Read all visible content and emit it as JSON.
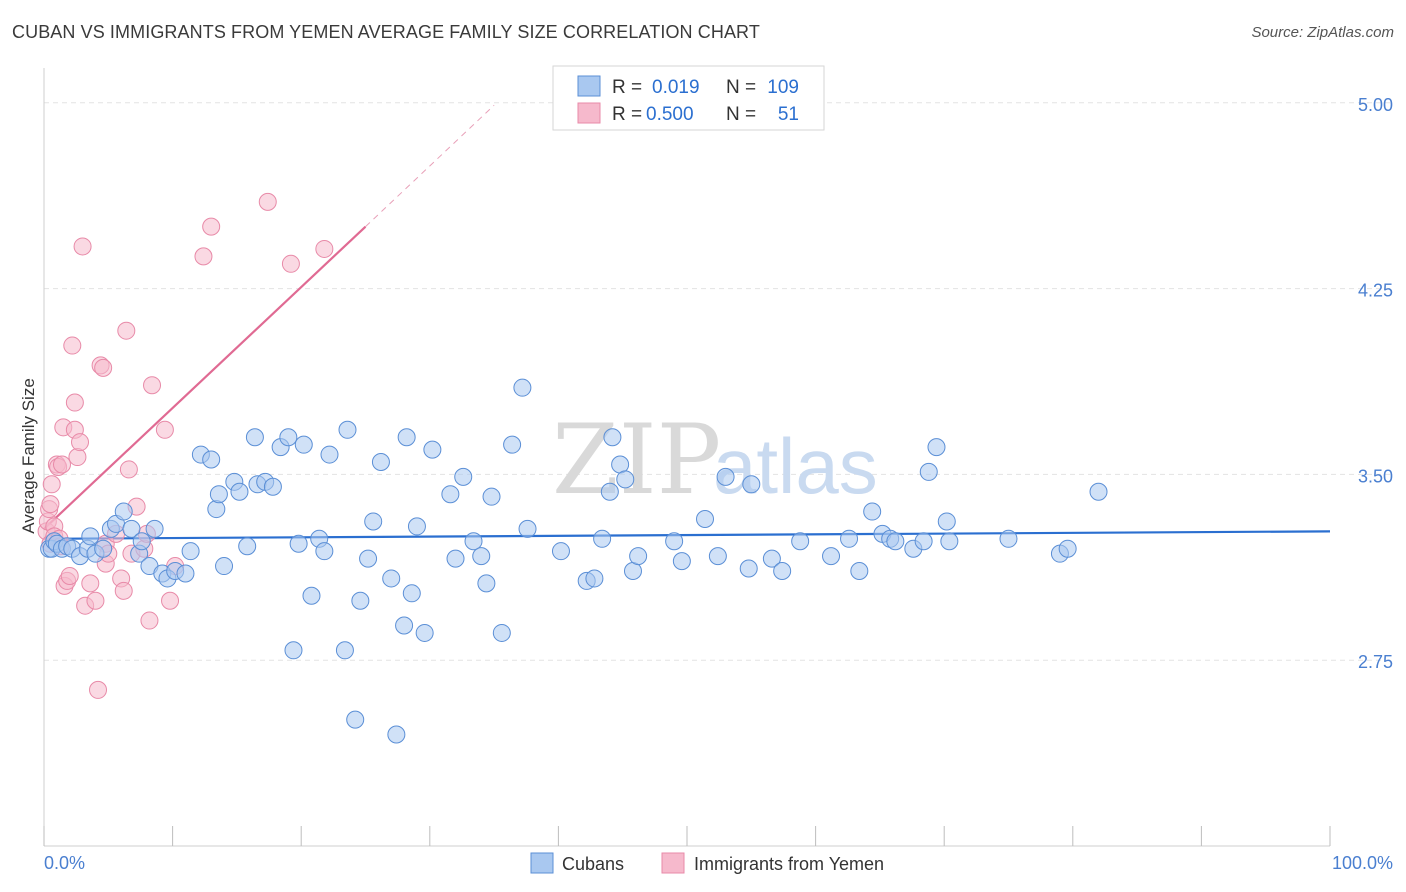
{
  "title": "CUBAN VS IMMIGRANTS FROM YEMEN AVERAGE FAMILY SIZE CORRELATION CHART",
  "source": "Source: ZipAtlas.com",
  "watermark": {
    "zip": "ZIP",
    "atlas": "atlas"
  },
  "colors": {
    "cubans_fill": "#a9c8f0",
    "cubans_stroke": "#5b8fd6",
    "cubans_line": "#2b6fd0",
    "yemen_fill": "#f6b9cc",
    "yemen_stroke": "#e88aa8",
    "yemen_line": "#e06a93",
    "axis_label": "#4a7fd0",
    "grid": "#e3e3e3"
  },
  "chart_data": {
    "type": "scatter",
    "title": "CUBAN VS IMMIGRANTS FROM YEMEN AVERAGE FAMILY SIZE CORRELATION CHART",
    "xlabel": "",
    "ylabel": "Average Family Size",
    "xlim": [
      0,
      100
    ],
    "ylim": [
      2.0,
      5.1
    ],
    "x_tick_labels": [
      "0.0%",
      "100.0%"
    ],
    "y_ticks": [
      5.0,
      4.25,
      3.5,
      2.75
    ],
    "y_tick_labels": [
      "5.00",
      "4.25",
      "3.50",
      "2.75"
    ],
    "grid": true,
    "legend_position": "top-center",
    "legend": [
      {
        "r_label": "R =",
        "r_value": "0.019",
        "n_label": "N =",
        "n_value": "109"
      },
      {
        "r_label": "R =",
        "r_value": "0.500",
        "n_label": "N =",
        "n_value": "51"
      }
    ],
    "series": [
      {
        "name": "Cubans",
        "trend": {
          "x": [
            0,
            100
          ],
          "y": [
            3.24,
            3.27
          ]
        },
        "points": [
          [
            0.4,
            3.2
          ],
          [
            0.6,
            3.2
          ],
          [
            0.8,
            3.23
          ],
          [
            1.0,
            3.22
          ],
          [
            1.4,
            3.2
          ],
          [
            1.8,
            3.21
          ],
          [
            2.2,
            3.2
          ],
          [
            2.8,
            3.17
          ],
          [
            3.4,
            3.2
          ],
          [
            3.6,
            3.25
          ],
          [
            4.0,
            3.18
          ],
          [
            4.6,
            3.2
          ],
          [
            5.2,
            3.28
          ],
          [
            5.6,
            3.3
          ],
          [
            6.2,
            3.35
          ],
          [
            6.8,
            3.28
          ],
          [
            7.4,
            3.18
          ],
          [
            7.6,
            3.23
          ],
          [
            8.2,
            3.13
          ],
          [
            8.6,
            3.28
          ],
          [
            9.2,
            3.1
          ],
          [
            9.6,
            3.08
          ],
          [
            10.2,
            3.11
          ],
          [
            11.0,
            3.1
          ],
          [
            11.4,
            3.19
          ],
          [
            12.2,
            3.58
          ],
          [
            13.0,
            3.56
          ],
          [
            13.4,
            3.36
          ],
          [
            13.6,
            3.42
          ],
          [
            14.0,
            3.13
          ],
          [
            14.8,
            3.47
          ],
          [
            15.2,
            3.43
          ],
          [
            15.8,
            3.21
          ],
          [
            16.4,
            3.65
          ],
          [
            16.6,
            3.46
          ],
          [
            17.2,
            3.47
          ],
          [
            17.8,
            3.45
          ],
          [
            18.4,
            3.61
          ],
          [
            19.0,
            3.65
          ],
          [
            19.4,
            2.79
          ],
          [
            19.8,
            3.22
          ],
          [
            20.2,
            3.62
          ],
          [
            20.8,
            3.01
          ],
          [
            21.4,
            3.24
          ],
          [
            21.8,
            3.19
          ],
          [
            22.2,
            3.58
          ],
          [
            23.4,
            2.79
          ],
          [
            23.6,
            3.68
          ],
          [
            24.2,
            2.51
          ],
          [
            24.6,
            2.99
          ],
          [
            25.2,
            3.16
          ],
          [
            25.6,
            3.31
          ],
          [
            26.2,
            3.55
          ],
          [
            27.0,
            3.08
          ],
          [
            27.4,
            2.45
          ],
          [
            28.0,
            2.89
          ],
          [
            28.2,
            3.65
          ],
          [
            28.6,
            3.02
          ],
          [
            29.0,
            3.29
          ],
          [
            29.6,
            2.86
          ],
          [
            30.2,
            3.6
          ],
          [
            31.6,
            3.42
          ],
          [
            32.0,
            3.16
          ],
          [
            32.6,
            3.49
          ],
          [
            33.4,
            3.23
          ],
          [
            34.0,
            3.17
          ],
          [
            34.4,
            3.06
          ],
          [
            34.8,
            3.41
          ],
          [
            35.6,
            2.86
          ],
          [
            36.4,
            3.62
          ],
          [
            37.2,
            3.85
          ],
          [
            37.6,
            3.28
          ],
          [
            40.2,
            3.19
          ],
          [
            42.2,
            3.07
          ],
          [
            42.8,
            3.08
          ],
          [
            43.4,
            3.24
          ],
          [
            44.0,
            3.43
          ],
          [
            44.2,
            3.65
          ],
          [
            44.8,
            3.54
          ],
          [
            45.2,
            3.48
          ],
          [
            45.8,
            3.11
          ],
          [
            46.2,
            3.17
          ],
          [
            49.0,
            3.23
          ],
          [
            49.6,
            3.15
          ],
          [
            51.4,
            3.32
          ],
          [
            52.4,
            3.17
          ],
          [
            53.0,
            3.49
          ],
          [
            54.8,
            3.12
          ],
          [
            55.0,
            3.46
          ],
          [
            56.6,
            3.16
          ],
          [
            57.4,
            3.11
          ],
          [
            58.8,
            3.23
          ],
          [
            61.2,
            3.17
          ],
          [
            62.6,
            3.24
          ],
          [
            63.4,
            3.11
          ],
          [
            64.4,
            3.35
          ],
          [
            65.2,
            3.26
          ],
          [
            65.8,
            3.24
          ],
          [
            66.2,
            3.23
          ],
          [
            67.6,
            3.2
          ],
          [
            68.4,
            3.23
          ],
          [
            68.8,
            3.51
          ],
          [
            69.4,
            3.61
          ],
          [
            70.2,
            3.31
          ],
          [
            70.4,
            3.23
          ],
          [
            75.0,
            3.24
          ],
          [
            79.0,
            3.18
          ],
          [
            79.6,
            3.2
          ],
          [
            82.0,
            3.43
          ]
        ]
      },
      {
        "name": "Immigrants from Yemen",
        "trend": {
          "x": [
            0,
            25
          ],
          "y": [
            3.28,
            4.5
          ]
        },
        "trend_extension": {
          "x": [
            25,
            35
          ],
          "y": [
            4.5,
            4.99
          ]
        },
        "points": [
          [
            0.2,
            3.27
          ],
          [
            0.3,
            3.31
          ],
          [
            0.4,
            3.36
          ],
          [
            0.5,
            3.22
          ],
          [
            0.5,
            3.38
          ],
          [
            0.6,
            3.46
          ],
          [
            0.8,
            3.29
          ],
          [
            0.8,
            3.25
          ],
          [
            1.0,
            3.54
          ],
          [
            1.1,
            3.53
          ],
          [
            1.2,
            3.24
          ],
          [
            1.3,
            3.21
          ],
          [
            1.4,
            3.54
          ],
          [
            1.5,
            3.69
          ],
          [
            1.6,
            3.05
          ],
          [
            1.8,
            3.07
          ],
          [
            2.0,
            3.09
          ],
          [
            2.2,
            4.02
          ],
          [
            2.4,
            3.79
          ],
          [
            2.4,
            3.68
          ],
          [
            2.6,
            3.57
          ],
          [
            2.8,
            3.63
          ],
          [
            3.0,
            4.42
          ],
          [
            3.2,
            2.97
          ],
          [
            3.6,
            3.06
          ],
          [
            4.0,
            2.99
          ],
          [
            4.2,
            2.63
          ],
          [
            4.4,
            3.94
          ],
          [
            4.6,
            3.93
          ],
          [
            4.8,
            3.14
          ],
          [
            4.8,
            3.22
          ],
          [
            5.0,
            3.18
          ],
          [
            5.6,
            3.26
          ],
          [
            6.0,
            3.08
          ],
          [
            6.2,
            3.03
          ],
          [
            6.4,
            4.08
          ],
          [
            6.6,
            3.52
          ],
          [
            6.8,
            3.18
          ],
          [
            7.2,
            3.37
          ],
          [
            7.8,
            3.2
          ],
          [
            8.0,
            3.26
          ],
          [
            8.2,
            2.91
          ],
          [
            8.4,
            3.86
          ],
          [
            9.4,
            3.68
          ],
          [
            9.8,
            2.99
          ],
          [
            10.2,
            3.13
          ],
          [
            12.4,
            4.38
          ],
          [
            13.0,
            4.5
          ],
          [
            17.4,
            4.6
          ],
          [
            19.2,
            4.35
          ],
          [
            21.8,
            4.41
          ]
        ]
      }
    ]
  }
}
